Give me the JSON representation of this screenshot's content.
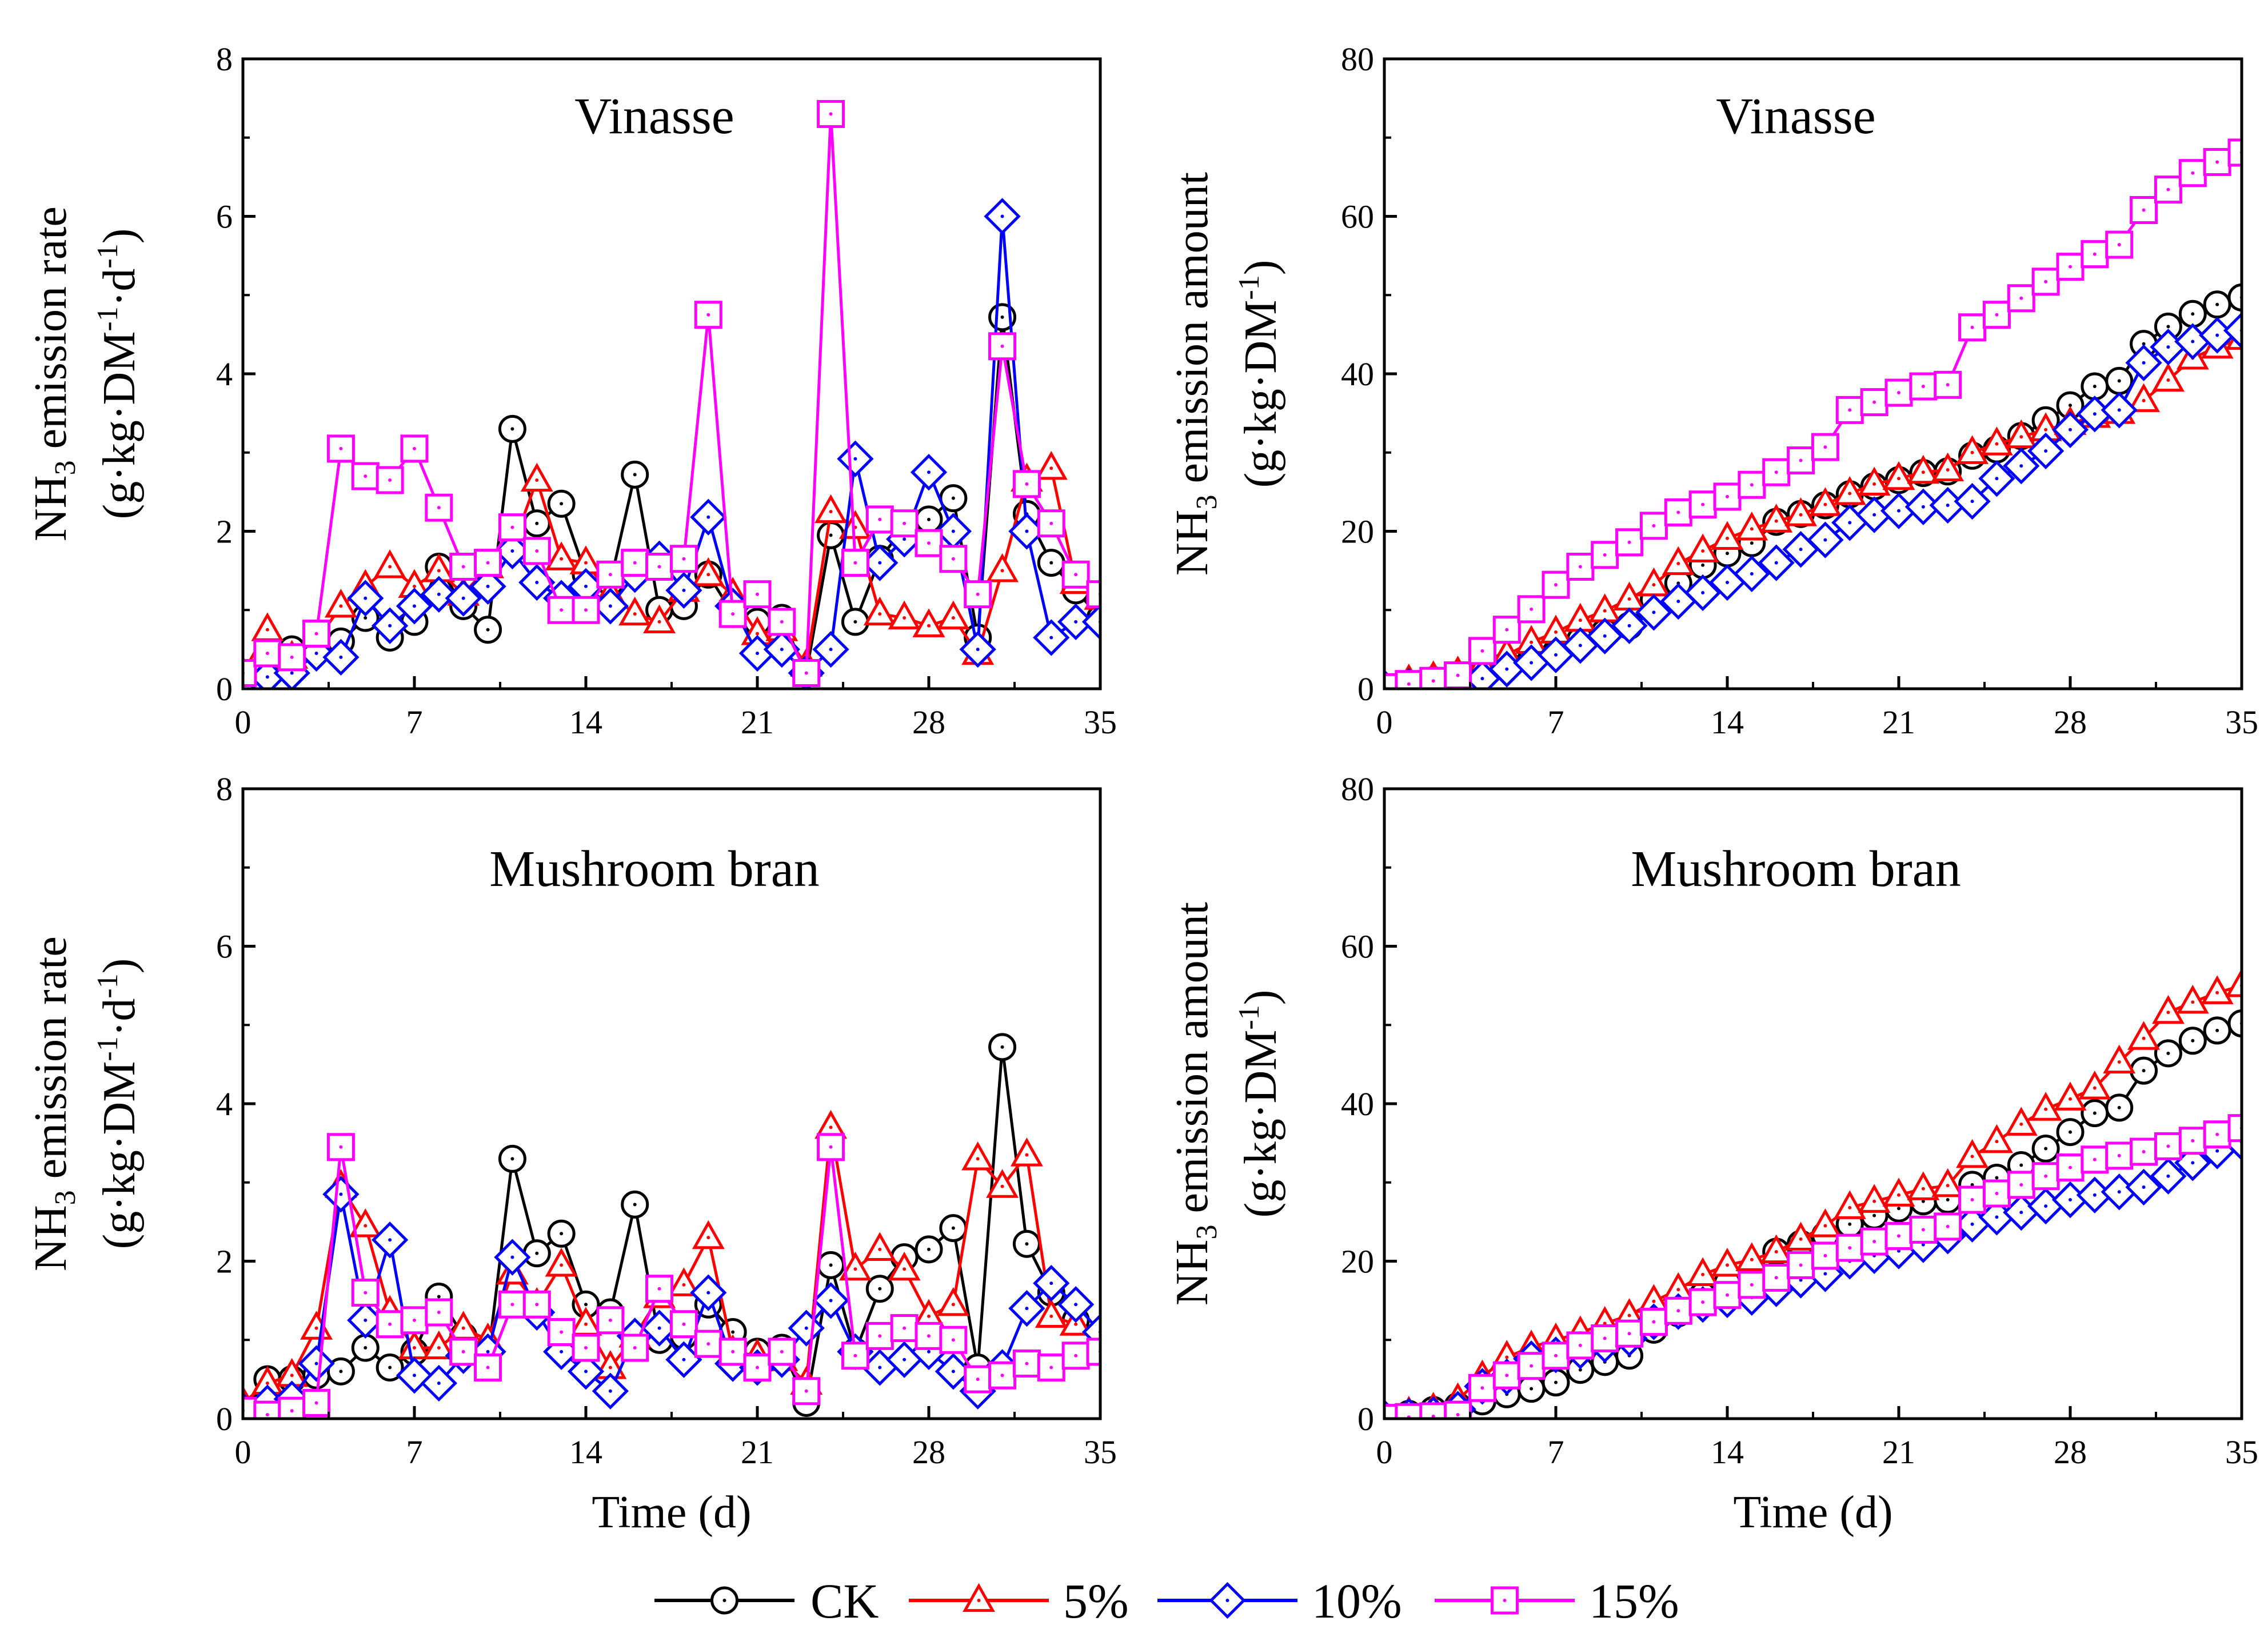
{
  "colors": {
    "CK": "#000000",
    "5%": "#ff0000",
    "10%": "#0000ff",
    "15%": "#ff00ff"
  },
  "legend": [
    {
      "key": "CK",
      "label": "CK",
      "marker": "circle"
    },
    {
      "key": "5%",
      "label": "5%",
      "marker": "triangle"
    },
    {
      "key": "10%",
      "label": "10%",
      "marker": "diamond"
    },
    {
      "key": "15%",
      "label": "15%",
      "marker": "square"
    }
  ],
  "chart_data": [
    {
      "type": "line",
      "panel": "top-left",
      "title": "Vinasse",
      "ylabel_line1": "NH",
      "ylabel_sub1": "3",
      "ylabel_rest1": " emission rate",
      "ylabel_line2": "(g·kg·DM",
      "ylabel_sup2a": "-1",
      "ylabel_mid2": "·d",
      "ylabel_sup2b": "-1",
      "ylabel_end2": ")",
      "xlabel": "",
      "xlim": [
        0,
        35
      ],
      "ylim": [
        0,
        8
      ],
      "xticks": [
        "0",
        "7",
        "14",
        "21",
        "28",
        "35"
      ],
      "yticks": [
        "0",
        "2",
        "4",
        "6",
        "8"
      ],
      "x": [
        0,
        1,
        2,
        3,
        4,
        5,
        6,
        7,
        8,
        9,
        10,
        11,
        12,
        13,
        14,
        15,
        16,
        17,
        18,
        19,
        20,
        21,
        22,
        23,
        24,
        25,
        26,
        27,
        28,
        29,
        30,
        31,
        32,
        33,
        34,
        35
      ],
      "series": [
        {
          "name": "CK",
          "values": [
            0.1,
            0.5,
            0.5,
            0.55,
            0.6,
            0.9,
            0.65,
            0.85,
            1.55,
            1.05,
            0.75,
            3.3,
            2.1,
            2.35,
            1.45,
            1.35,
            2.72,
            1.0,
            1.05,
            1.45,
            0.95,
            0.85,
            0.9,
            0.2,
            1.95,
            0.85,
            1.65,
            2.05,
            2.15,
            2.42,
            0.65,
            4.72,
            2.22,
            1.6,
            1.25,
            0.9
          ]
        },
        {
          "name": "5%",
          "values": [
            0.2,
            0.75,
            0.4,
            0.6,
            1.05,
            1.3,
            1.55,
            1.3,
            1.5,
            1.2,
            1.55,
            1.8,
            2.65,
            1.65,
            1.6,
            1.2,
            0.95,
            0.85,
            1.25,
            1.45,
            1.2,
            0.7,
            0.75,
            0.3,
            2.25,
            2.05,
            0.95,
            0.9,
            0.8,
            0.9,
            0.45,
            1.5,
            2.65,
            2.8,
            1.35,
            1.15
          ]
        },
        {
          "name": "10%",
          "values": [
            0.1,
            0.15,
            0.2,
            0.45,
            0.4,
            1.15,
            0.8,
            1.05,
            1.2,
            1.15,
            1.3,
            1.75,
            1.35,
            1.15,
            1.3,
            1.05,
            1.45,
            1.65,
            1.25,
            2.18,
            1.05,
            0.45,
            0.5,
            0.2,
            0.5,
            2.92,
            1.6,
            1.9,
            2.75,
            2.0,
            0.5,
            6.0,
            2.0,
            0.65,
            0.85,
            0.85
          ]
        },
        {
          "name": "15%",
          "values": [
            0.2,
            0.45,
            0.4,
            0.7,
            3.05,
            2.7,
            2.65,
            3.05,
            2.3,
            1.55,
            1.6,
            2.05,
            1.75,
            1.0,
            1.0,
            1.45,
            1.6,
            1.55,
            1.65,
            4.75,
            0.95,
            1.2,
            0.85,
            0.2,
            7.3,
            1.6,
            2.15,
            2.1,
            1.85,
            1.65,
            1.2,
            4.35,
            2.6,
            2.1,
            1.45,
            1.2
          ]
        }
      ]
    },
    {
      "type": "line",
      "panel": "top-right",
      "title": "Vinasse",
      "ylabel_line1": "NH",
      "ylabel_sub1": "3",
      "ylabel_rest1": " emission amount",
      "ylabel_line2": "(g·kg·DM",
      "ylabel_sup2a": "-1",
      "ylabel_mid2": "",
      "ylabel_sup2b": "",
      "ylabel_end2": ")",
      "xlabel": "",
      "xlim": [
        0,
        35
      ],
      "ylim": [
        0,
        80
      ],
      "xticks": [
        "0",
        "7",
        "14",
        "21",
        "28",
        "35"
      ],
      "yticks": [
        "0",
        "20",
        "40",
        "60",
        "80"
      ],
      "x": [
        0,
        1,
        2,
        3,
        4,
        5,
        6,
        7,
        8,
        9,
        10,
        11,
        12,
        13,
        14,
        15,
        16,
        17,
        18,
        19,
        20,
        21,
        22,
        23,
        24,
        25,
        26,
        27,
        28,
        29,
        30,
        31,
        32,
        33,
        34,
        35
      ],
      "series": [
        {
          "name": "CK",
          "values": [
            0.1,
            0.6,
            1.1,
            1.6,
            2.2,
            3.1,
            3.8,
            4.6,
            6.2,
            7.2,
            8.0,
            11.3,
            13.4,
            15.7,
            17.2,
            18.5,
            21.2,
            22.2,
            23.3,
            24.7,
            25.7,
            26.5,
            27.4,
            27.6,
            29.6,
            30.4,
            32.1,
            34.1,
            36.0,
            38.4,
            39.1,
            43.8,
            46.0,
            47.6,
            48.8,
            49.7
          ]
        },
        {
          "name": "5%",
          "values": [
            0.2,
            1.0,
            1.4,
            2.0,
            3.0,
            4.3,
            5.9,
            7.2,
            8.7,
            9.9,
            11.4,
            13.2,
            15.9,
            17.5,
            19.1,
            20.3,
            21.3,
            22.1,
            23.4,
            24.8,
            26.0,
            26.7,
            27.5,
            27.8,
            30.0,
            31.1,
            32.0,
            32.9,
            33.7,
            34.6,
            35.1,
            36.6,
            39.2,
            42.0,
            43.4,
            44.5
          ]
        },
        {
          "name": "10%",
          "values": [
            0.1,
            0.3,
            0.5,
            0.9,
            1.3,
            2.5,
            3.3,
            4.3,
            5.5,
            6.7,
            8.0,
            9.7,
            11.1,
            12.2,
            13.5,
            14.6,
            16.0,
            17.7,
            18.9,
            21.1,
            22.1,
            22.6,
            23.1,
            23.3,
            23.8,
            26.7,
            28.3,
            30.2,
            32.9,
            34.9,
            35.4,
            41.4,
            43.4,
            44.1,
            44.9,
            45.5
          ]
        },
        {
          "name": "15%",
          "values": [
            0.2,
            0.6,
            1.0,
            1.7,
            4.8,
            7.5,
            10.1,
            13.2,
            15.5,
            17.0,
            18.6,
            20.7,
            22.4,
            23.4,
            24.4,
            25.9,
            27.5,
            29.0,
            30.7,
            35.4,
            36.4,
            37.6,
            38.4,
            38.6,
            45.9,
            47.5,
            49.6,
            51.7,
            53.6,
            55.2,
            56.4,
            60.8,
            63.4,
            65.5,
            66.9,
            68.1
          ]
        }
      ]
    },
    {
      "type": "line",
      "panel": "bottom-left",
      "title": "Mushroom bran",
      "ylabel_line1": "NH",
      "ylabel_sub1": "3",
      "ylabel_rest1": " emission rate",
      "ylabel_line2": "(g·kg·DM",
      "ylabel_sup2a": "-1",
      "ylabel_mid2": "·d",
      "ylabel_sup2b": "-1",
      "ylabel_end2": ")",
      "xlabel": "Time (d)",
      "xlim": [
        0,
        35
      ],
      "ylim": [
        0,
        8
      ],
      "xticks": [
        "0",
        "7",
        "14",
        "21",
        "28",
        "35"
      ],
      "yticks": [
        "0",
        "2",
        "4",
        "6",
        "8"
      ],
      "x": [
        0,
        1,
        2,
        3,
        4,
        5,
        6,
        7,
        8,
        9,
        10,
        11,
        12,
        13,
        14,
        15,
        16,
        17,
        18,
        19,
        20,
        21,
        22,
        23,
        24,
        25,
        26,
        27,
        28,
        29,
        30,
        31,
        32,
        33,
        34,
        35
      ],
      "series": [
        {
          "name": "CK",
          "values": [
            0.1,
            0.5,
            0.5,
            0.55,
            0.6,
            0.9,
            0.65,
            0.85,
            1.55,
            1.05,
            0.75,
            3.3,
            2.1,
            2.35,
            1.45,
            1.35,
            2.72,
            1.0,
            1.05,
            1.45,
            1.1,
            0.85,
            0.9,
            0.2,
            1.95,
            0.85,
            1.65,
            2.05,
            2.15,
            2.42,
            0.65,
            4.72,
            2.22,
            1.6,
            1.25,
            0.9
          ]
        },
        {
          "name": "5%",
          "values": [
            0.2,
            0.45,
            0.55,
            1.15,
            2.95,
            2.45,
            1.35,
            0.9,
            0.9,
            1.15,
            1.0,
            1.85,
            1.45,
            1.95,
            1.2,
            0.65,
            1.05,
            1.55,
            1.7,
            2.3,
            0.85,
            0.8,
            0.75,
            0.45,
            3.7,
            1.9,
            2.15,
            1.9,
            1.3,
            1.45,
            3.3,
            2.95,
            3.35,
            1.3,
            1.2,
            0.9
          ]
        },
        {
          "name": "10%",
          "values": [
            0.1,
            0.2,
            0.25,
            0.7,
            2.85,
            1.25,
            2.27,
            0.55,
            0.45,
            0.8,
            0.85,
            2.05,
            1.35,
            0.85,
            0.6,
            0.35,
            1.05,
            1.15,
            0.75,
            1.6,
            0.7,
            0.65,
            0.75,
            1.15,
            1.5,
            0.85,
            0.65,
            0.75,
            0.85,
            0.6,
            0.35,
            0.65,
            1.4,
            1.72,
            1.45,
            1.1
          ]
        },
        {
          "name": "15%",
          "values": [
            0.1,
            0.05,
            0.1,
            0.2,
            3.45,
            1.6,
            1.2,
            1.25,
            1.35,
            0.85,
            0.65,
            1.45,
            1.45,
            1.1,
            0.9,
            1.25,
            0.9,
            1.65,
            1.2,
            0.95,
            0.85,
            0.65,
            0.85,
            0.35,
            3.45,
            0.8,
            1.05,
            1.15,
            1.05,
            1.0,
            0.5,
            0.55,
            0.7,
            0.65,
            0.8,
            0.85
          ]
        }
      ]
    },
    {
      "type": "line",
      "panel": "bottom-right",
      "title": "Mushroom bran",
      "ylabel_line1": "NH",
      "ylabel_sub1": "3",
      "ylabel_rest1": " emission amount",
      "ylabel_line2": "(g·kg·DM",
      "ylabel_sup2a": "-1",
      "ylabel_mid2": "",
      "ylabel_sup2b": "",
      "ylabel_end2": ")",
      "xlabel": "Time (d)",
      "xlim": [
        0,
        35
      ],
      "ylim": [
        0,
        80
      ],
      "xticks": [
        "0",
        "7",
        "14",
        "21",
        "28",
        "35"
      ],
      "yticks": [
        "0",
        "20",
        "40",
        "60",
        "80"
      ],
      "x": [
        0,
        1,
        2,
        3,
        4,
        5,
        6,
        7,
        8,
        9,
        10,
        11,
        12,
        13,
        14,
        15,
        16,
        17,
        18,
        19,
        20,
        21,
        22,
        23,
        24,
        25,
        26,
        27,
        28,
        29,
        30,
        31,
        32,
        33,
        34,
        35
      ],
      "series": [
        {
          "name": "CK",
          "values": [
            0.1,
            0.6,
            1.1,
            1.6,
            2.2,
            3.1,
            3.8,
            4.6,
            6.2,
            7.2,
            8.0,
            11.3,
            13.4,
            15.7,
            17.2,
            18.5,
            21.2,
            22.2,
            23.3,
            24.7,
            25.8,
            26.7,
            27.6,
            27.8,
            29.7,
            30.6,
            32.2,
            34.3,
            36.4,
            38.8,
            39.5,
            44.2,
            46.4,
            48.0,
            49.3,
            50.2
          ]
        },
        {
          "name": "5%",
          "values": [
            0.2,
            0.7,
            1.2,
            2.4,
            5.3,
            7.8,
            9.1,
            10.0,
            10.9,
            12.1,
            13.1,
            14.9,
            16.4,
            18.3,
            19.5,
            20.2,
            21.2,
            22.8,
            24.5,
            26.8,
            27.6,
            28.4,
            29.2,
            29.6,
            33.3,
            35.2,
            37.4,
            39.3,
            40.6,
            42.0,
            45.3,
            48.3,
            51.6,
            52.9,
            54.1,
            55.0
          ]
        },
        {
          "name": "10%",
          "values": [
            0.1,
            0.3,
            0.5,
            1.2,
            4.1,
            5.3,
            7.6,
            8.1,
            8.6,
            9.4,
            10.2,
            12.3,
            13.6,
            14.5,
            15.1,
            15.4,
            16.5,
            17.6,
            18.4,
            20.0,
            20.7,
            21.3,
            22.1,
            23.2,
            24.7,
            25.6,
            26.2,
            27.0,
            27.8,
            28.4,
            28.8,
            29.4,
            30.8,
            32.5,
            34.0,
            35.1
          ]
        },
        {
          "name": "15%",
          "values": [
            0.1,
            0.2,
            0.3,
            0.5,
            3.9,
            5.5,
            6.7,
            8.0,
            9.3,
            10.2,
            10.8,
            12.3,
            13.7,
            14.8,
            15.7,
            17.0,
            17.9,
            19.5,
            20.7,
            21.7,
            22.5,
            23.2,
            24.0,
            24.4,
            27.8,
            28.6,
            29.7,
            30.8,
            31.9,
            32.9,
            33.4,
            33.9,
            34.6,
            35.3,
            36.1,
            36.9
          ]
        }
      ]
    }
  ]
}
